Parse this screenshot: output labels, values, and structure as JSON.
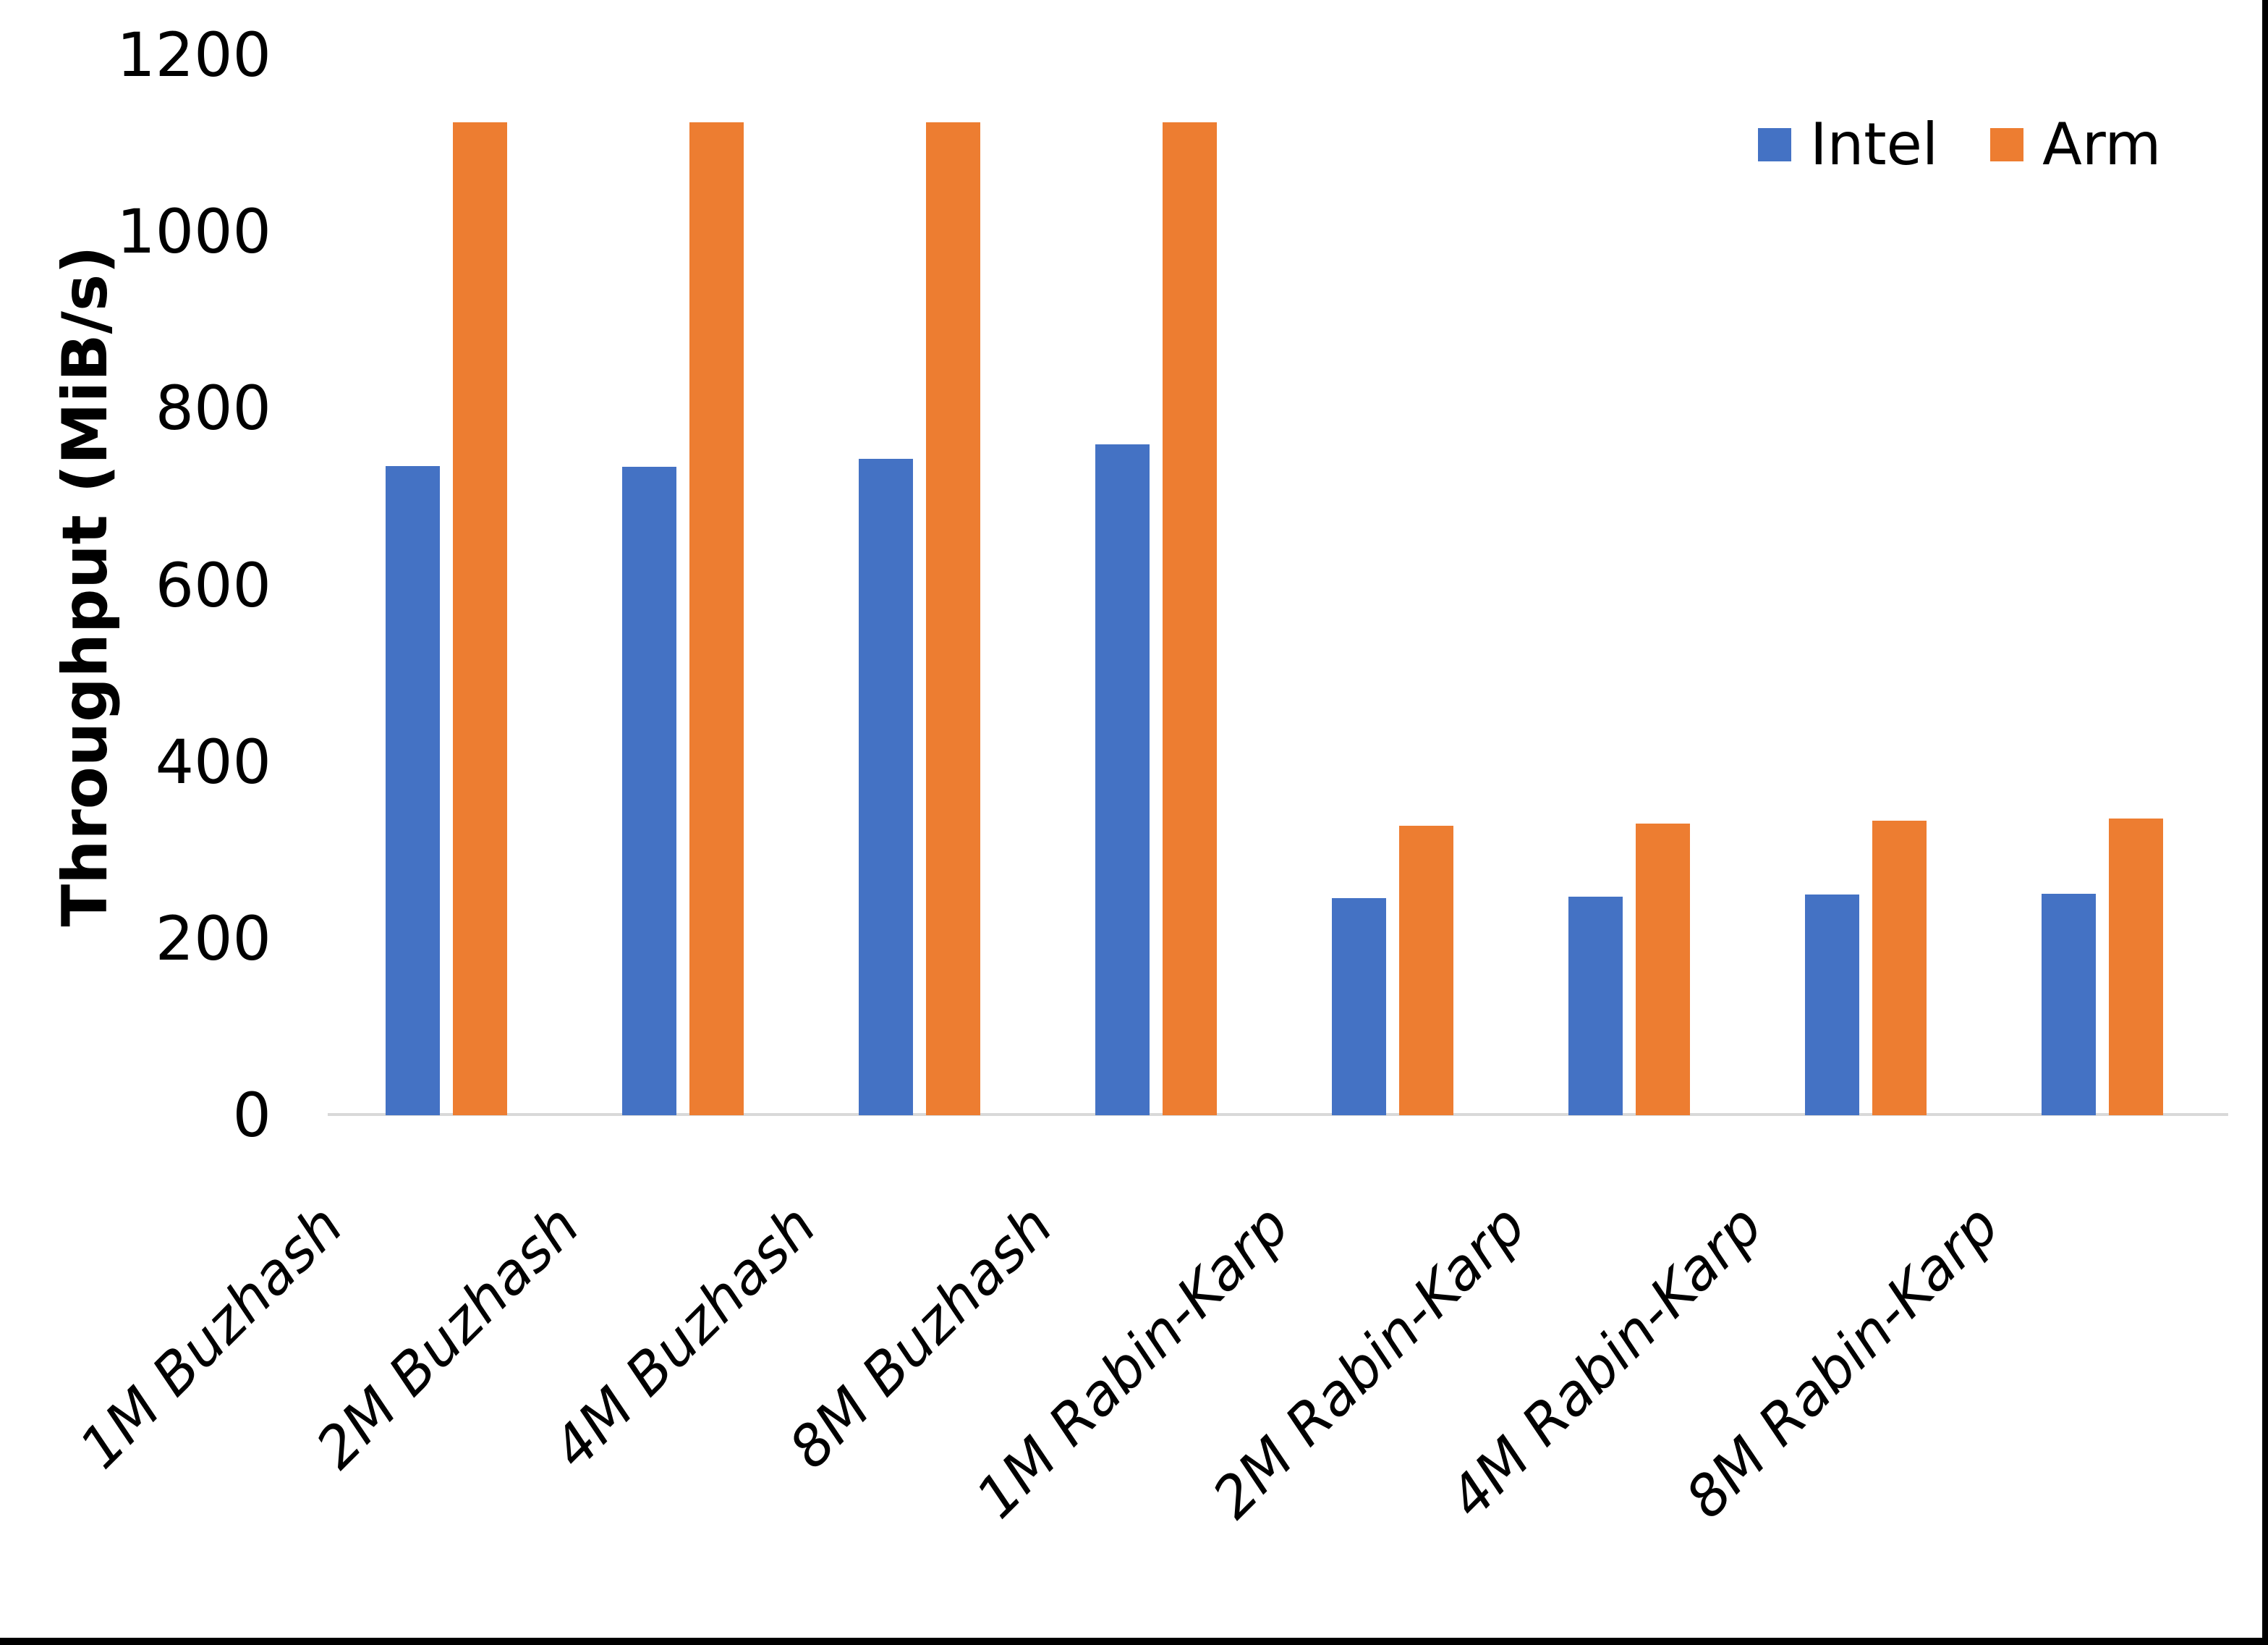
{
  "y_axis": {
    "title": "Throughput (MiB/s)",
    "ticks": [
      0,
      200,
      400,
      600,
      800,
      1000,
      1200
    ]
  },
  "legend": {
    "items": [
      {
        "label": "Intel",
        "color": "#4472C4"
      },
      {
        "label": "Arm",
        "color": "#ED7D31"
      }
    ]
  },
  "chart_data": {
    "type": "bar",
    "title": "",
    "categories": [
      "1M Buzhash",
      "2M Buzhash",
      "4M Buzhash",
      "8M Buzhash",
      "1M Rabin-Karp",
      "2M Rabin-Karp",
      "4M Rabin-Karp",
      "8M Rabin-Karp"
    ],
    "series": [
      {
        "name": "Intel",
        "color": "#4472C4",
        "values": [
          735,
          734,
          743,
          759,
          246,
          247,
          250,
          251
        ]
      },
      {
        "name": "Arm",
        "color": "#ED7D31",
        "values": [
          1124,
          1124,
          1124,
          1124,
          328,
          330,
          333,
          336
        ]
      }
    ],
    "xlabel": "",
    "ylabel": "Throughput (MiB/s)",
    "ylim": [
      0,
      1200
    ],
    "grid": false,
    "legend_position": "top-right",
    "axis_line_color": "#D9D9D9"
  }
}
